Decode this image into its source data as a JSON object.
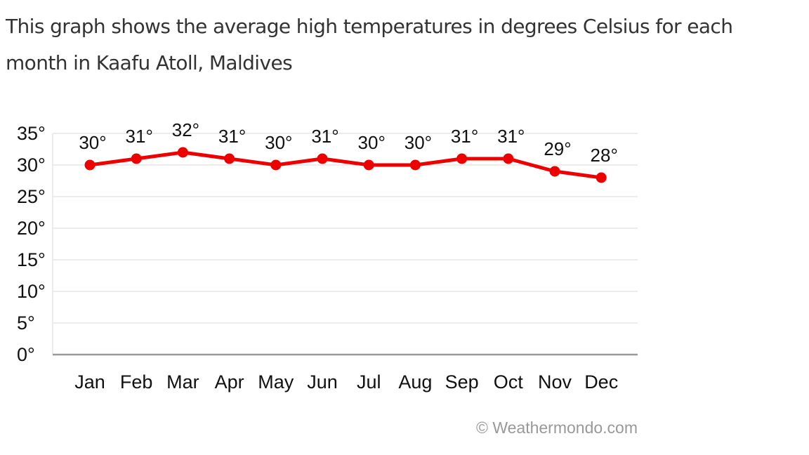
{
  "description": "This graph shows the average high temperatures in degrees Celsius for each month in Kaafu Atoll, Maldives",
  "credit": "© Weathermondo.com",
  "colors": {
    "line": "#ee0000",
    "grid": "#e6e6e6",
    "axis": "#999999"
  },
  "chart_data": {
    "type": "line",
    "categories": [
      "Jan",
      "Feb",
      "Mar",
      "Apr",
      "May",
      "Jun",
      "Jul",
      "Aug",
      "Sep",
      "Oct",
      "Nov",
      "Dec"
    ],
    "series": [
      {
        "values": [
          30,
          31,
          32,
          31,
          30,
          31,
          30,
          30,
          31,
          31,
          29,
          28
        ]
      }
    ],
    "data_labels": [
      "30°",
      "31°",
      "32°",
      "31°",
      "30°",
      "31°",
      "30°",
      "30°",
      "31°",
      "31°",
      "29°",
      "28°"
    ],
    "y_ticks": [
      0,
      5,
      10,
      15,
      20,
      25,
      30,
      35
    ],
    "y_tick_labels": [
      "0°",
      "5°",
      "10°",
      "15°",
      "20°",
      "25°",
      "30°",
      "35°"
    ],
    "ylim": [
      0,
      35
    ],
    "grid": true,
    "title": "",
    "xlabel": "",
    "ylabel": ""
  }
}
